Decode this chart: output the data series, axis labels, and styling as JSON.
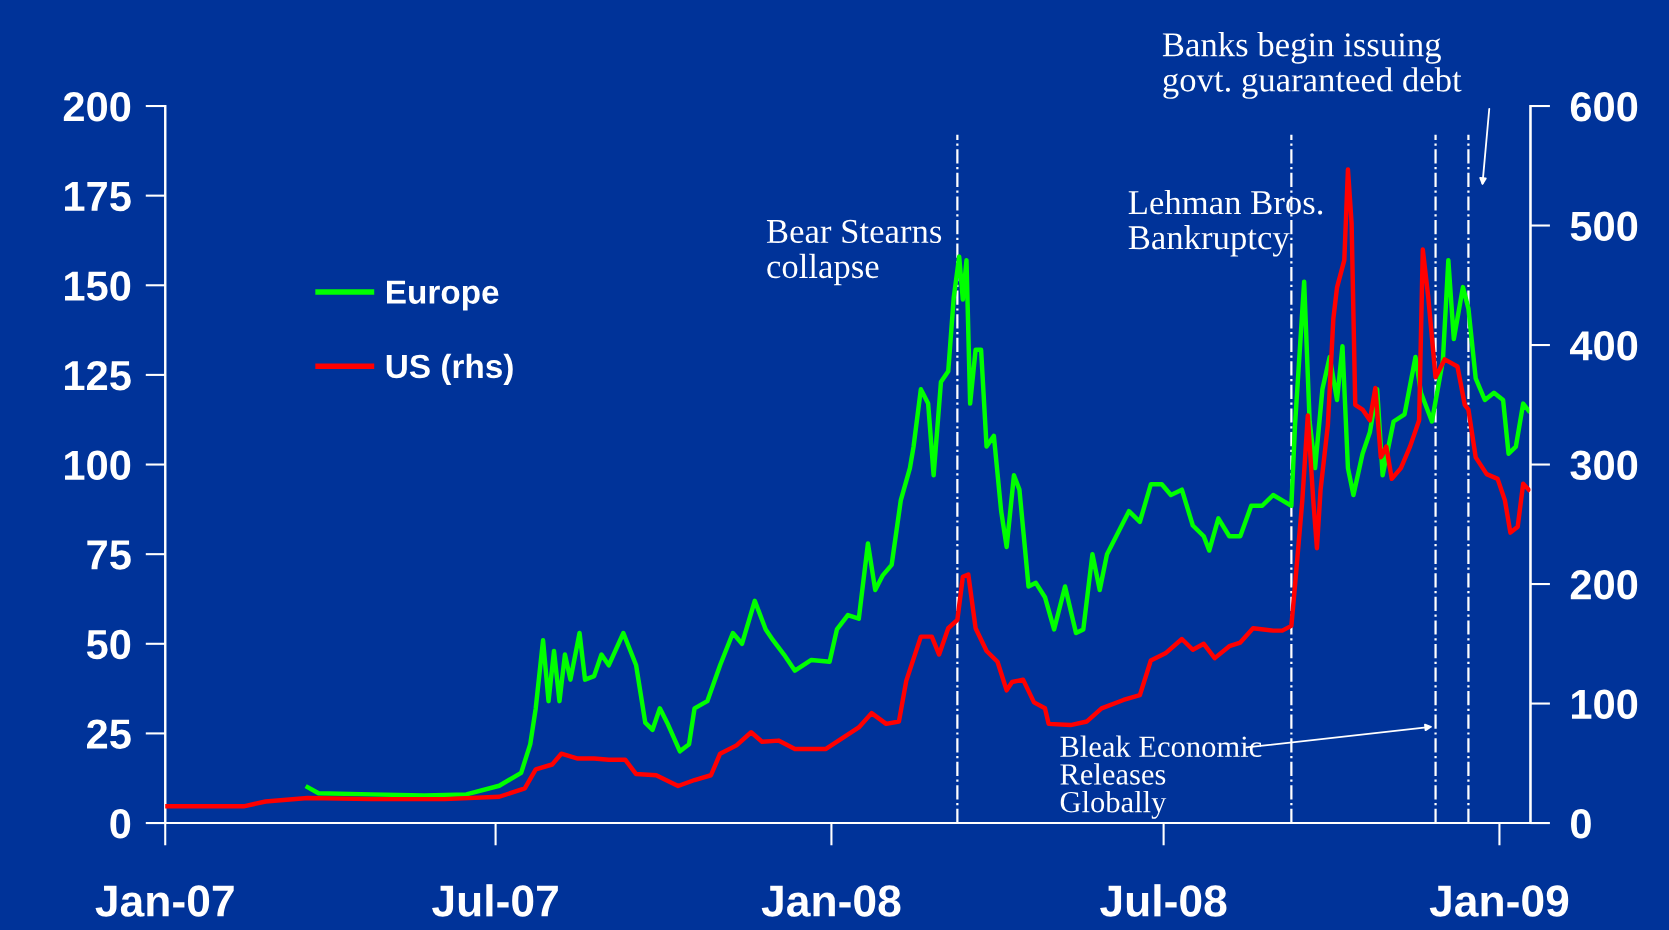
{
  "chart_data": {
    "type": "line",
    "series": [
      {
        "name": "Europe",
        "color": "#00ff00",
        "axis": "y",
        "x": [
          "2007-03-20",
          "2007-03-26",
          "2007-04-24",
          "2007-05-23",
          "2007-06-15",
          "2007-07-03",
          "2007-07-15",
          "2007-07-20",
          "2007-07-23",
          "2007-07-27",
          "2007-07-30",
          "2007-08-02",
          "2007-08-05",
          "2007-08-08",
          "2007-08-11",
          "2007-08-16",
          "2007-08-19",
          "2007-08-24",
          "2007-08-28",
          "2007-09-01",
          "2007-09-09",
          "2007-09-16",
          "2007-09-21",
          "2007-09-25",
          "2007-09-29",
          "2007-10-03",
          "2007-10-10",
          "2007-10-15",
          "2007-10-18",
          "2007-10-25",
          "2007-11-01",
          "2007-11-08",
          "2007-11-13",
          "2007-11-20",
          "2007-11-26",
          "2007-11-30",
          "2007-12-06",
          "2007-12-12",
          "2007-12-21",
          "2007-12-31",
          "2008-01-04",
          "2008-01-10",
          "2008-01-16",
          "2008-01-21",
          "2008-01-25",
          "2008-01-29",
          "2008-02-03",
          "2008-02-08",
          "2008-02-13",
          "2008-02-15",
          "2008-02-19",
          "2008-02-23",
          "2008-02-26",
          "2008-03-01",
          "2008-03-05",
          "2008-03-08",
          "2008-03-11",
          "2008-03-13",
          "2008-03-15",
          "2008-03-17",
          "2008-03-20",
          "2008-03-23",
          "2008-03-26",
          "2008-03-30",
          "2008-04-03",
          "2008-04-06",
          "2008-04-10",
          "2008-04-13",
          "2008-04-18",
          "2008-04-22",
          "2008-04-27",
          "2008-05-02",
          "2008-05-08",
          "2008-05-14",
          "2008-05-18",
          "2008-05-23",
          "2008-05-27",
          "2008-05-31",
          "2008-06-06",
          "2008-06-12",
          "2008-06-18",
          "2008-06-24",
          "2008-06-30",
          "2008-07-05",
          "2008-07-11",
          "2008-07-17",
          "2008-07-23",
          "2008-07-26",
          "2008-07-31",
          "2008-08-06",
          "2008-08-12",
          "2008-08-18",
          "2008-08-24",
          "2008-08-30",
          "2008-09-04",
          "2008-09-09",
          "2008-09-11",
          "2008-09-16",
          "2008-09-19",
          "2008-09-22",
          "2008-09-26",
          "2008-09-30",
          "2008-10-04",
          "2008-10-07",
          "2008-10-10",
          "2008-10-13",
          "2008-10-18",
          "2008-10-22",
          "2008-10-26",
          "2008-10-29",
          "2008-11-04",
          "2008-11-10",
          "2008-11-16",
          "2008-11-19",
          "2008-11-25",
          "2008-12-01",
          "2008-12-04",
          "2008-12-07",
          "2008-12-12",
          "2008-12-15",
          "2008-12-19",
          "2008-12-24",
          "2008-12-29",
          "2009-01-03",
          "2009-01-06",
          "2009-01-10",
          "2009-01-14",
          "2009-01-17"
        ],
        "values": [
          10,
          8.3,
          8,
          7.7,
          8,
          10.4,
          14,
          22,
          32,
          51,
          34,
          48,
          34,
          47,
          40,
          53,
          40,
          41,
          47,
          44,
          53,
          44,
          28,
          26,
          32,
          28,
          20,
          22,
          32,
          34,
          44,
          53,
          50,
          62,
          54,
          51,
          47,
          42.5,
          45.5,
          45,
          54,
          58,
          57,
          78,
          65,
          69,
          72,
          90,
          99,
          105,
          121,
          117,
          97,
          123,
          126,
          146.5,
          158,
          146,
          157,
          117,
          132,
          132,
          105,
          108,
          87,
          77,
          97,
          93,
          66,
          67,
          63,
          54,
          66,
          53,
          54,
          75,
          65,
          75,
          81,
          87,
          84,
          94.5,
          94.5,
          91.5,
          93,
          83,
          80,
          76,
          85,
          80,
          80,
          88.5,
          88.5,
          91.5,
          90,
          88.5,
          111,
          151,
          112,
          99,
          121,
          130,
          118,
          133,
          99,
          91.5,
          103,
          109,
          121,
          97,
          112,
          114,
          130,
          120,
          112,
          129,
          157,
          135,
          149.5,
          143.5,
          124,
          118,
          120,
          118,
          103,
          105,
          117,
          115
        ]
      },
      {
        "name": "US (rhs)",
        "color": "#ff0000",
        "axis": "y2",
        "x": [
          "2007-01-01",
          "2007-02-13",
          "2007-02-25",
          "2007-03-20",
          "2007-04-24",
          "2007-06-03",
          "2007-07-03",
          "2007-07-17",
          "2007-07-23",
          "2007-08-01",
          "2007-08-06",
          "2007-08-15",
          "2007-08-24",
          "2007-09-01",
          "2007-09-10",
          "2007-09-16",
          "2007-09-27",
          "2007-10-09",
          "2007-10-18",
          "2007-10-27",
          "2007-11-01",
          "2007-11-10",
          "2007-11-18",
          "2007-11-24",
          "2007-12-03",
          "2007-12-12",
          "2007-12-29",
          "2008-01-07",
          "2008-01-16",
          "2008-01-23",
          "2008-01-31",
          "2008-02-07",
          "2008-02-11",
          "2008-02-19",
          "2008-02-25",
          "2008-02-29",
          "2008-03-05",
          "2008-03-10",
          "2008-03-13",
          "2008-03-16",
          "2008-03-20",
          "2008-03-26",
          "2008-04-01",
          "2008-04-06",
          "2008-04-09",
          "2008-04-15",
          "2008-04-21",
          "2008-04-27",
          "2008-04-29",
          "2008-05-11",
          "2008-05-20",
          "2008-05-28",
          "2008-06-09",
          "2008-06-18",
          "2008-06-24",
          "2008-07-02",
          "2008-07-11",
          "2008-07-17",
          "2008-07-23",
          "2008-07-29",
          "2008-08-06",
          "2008-08-12",
          "2008-08-19",
          "2008-08-30",
          "2008-09-04",
          "2008-09-09",
          "2008-09-11",
          "2008-09-15",
          "2008-09-18",
          "2008-09-21",
          "2008-09-23",
          "2008-09-25",
          "2008-09-29",
          "2008-10-02",
          "2008-10-04",
          "2008-10-08",
          "2008-10-10",
          "2008-10-12",
          "2008-10-14",
          "2008-10-18",
          "2008-10-22",
          "2008-10-25",
          "2008-10-28",
          "2008-10-31",
          "2008-11-03",
          "2008-11-08",
          "2008-11-13",
          "2008-11-18",
          "2008-11-20",
          "2008-11-23",
          "2008-11-27",
          "2008-12-02",
          "2008-12-09",
          "2008-12-13",
          "2008-12-15",
          "2008-12-19",
          "2008-12-25",
          "2008-12-31",
          "2009-01-04",
          "2009-01-07",
          "2009-01-11",
          "2009-01-14",
          "2009-01-17"
        ],
        "values": [
          14,
          14,
          18,
          21,
          20,
          20,
          22,
          29,
          45,
          49,
          58,
          54,
          54,
          53,
          53,
          41,
          40,
          31,
          36,
          40,
          58,
          65,
          76,
          68,
          69,
          62,
          62,
          71,
          80,
          92,
          83,
          85,
          119,
          156,
          156,
          141,
          163,
          170,
          206,
          208,
          163,
          144,
          135,
          111,
          118,
          120,
          101,
          96,
          83,
          82,
          85,
          96,
          103,
          107,
          136,
          142,
          154,
          145,
          150,
          138,
          148,
          151,
          163,
          161,
          161,
          165,
          199,
          270,
          341,
          270,
          230,
          279,
          333,
          422,
          448,
          471,
          547,
          502,
          350,
          346,
          337,
          364,
          306,
          315,
          288,
          297,
          315,
          337,
          480,
          440,
          373,
          388,
          382,
          350,
          346,
          306,
          292,
          288,
          270,
          243,
          248,
          284,
          279
        ]
      }
    ],
    "xlim": [
      "2007-01-01",
      "2009-01-18"
    ],
    "xticks": [
      {
        "value": "2007-01-01",
        "label": "Jan-07"
      },
      {
        "value": "2007-07-01",
        "label": "Jul-07"
      },
      {
        "value": "2008-01-01",
        "label": "Jan-08"
      },
      {
        "value": "2008-07-01",
        "label": "Jul-08"
      },
      {
        "value": "2009-01-01",
        "label": "Jan-09"
      }
    ],
    "ylim": [
      0,
      200
    ],
    "yticks": [
      0,
      25,
      50,
      75,
      100,
      125,
      150,
      175,
      200
    ],
    "y2lim": [
      0,
      600
    ],
    "y2ticks": [
      0,
      100,
      200,
      300,
      400,
      500,
      600
    ],
    "ref_lines": [
      {
        "axis": "x",
        "value": "2008-03-10",
        "color": "#ffffff",
        "line_style": "dashdot"
      },
      {
        "axis": "x",
        "value": "2008-09-09",
        "color": "#ffffff",
        "line_style": "dashdot"
      },
      {
        "axis": "x",
        "value": "2008-11-27",
        "color": "#ffffff",
        "line_style": "dashdot"
      },
      {
        "axis": "x",
        "value": "2008-12-15",
        "color": "#ffffff",
        "line_style": "dashdot"
      }
    ],
    "annotations": [
      "Bear Stearns\ncollapse",
      "Lehman Bros.\nBankruptcy",
      "Bleak Economic\nReleases\nGlobally",
      "Banks begin issuing\ngovt. guaranteed debt"
    ],
    "legend": "top left",
    "grid": false,
    "marker": "none",
    "line_style": "solid"
  }
}
